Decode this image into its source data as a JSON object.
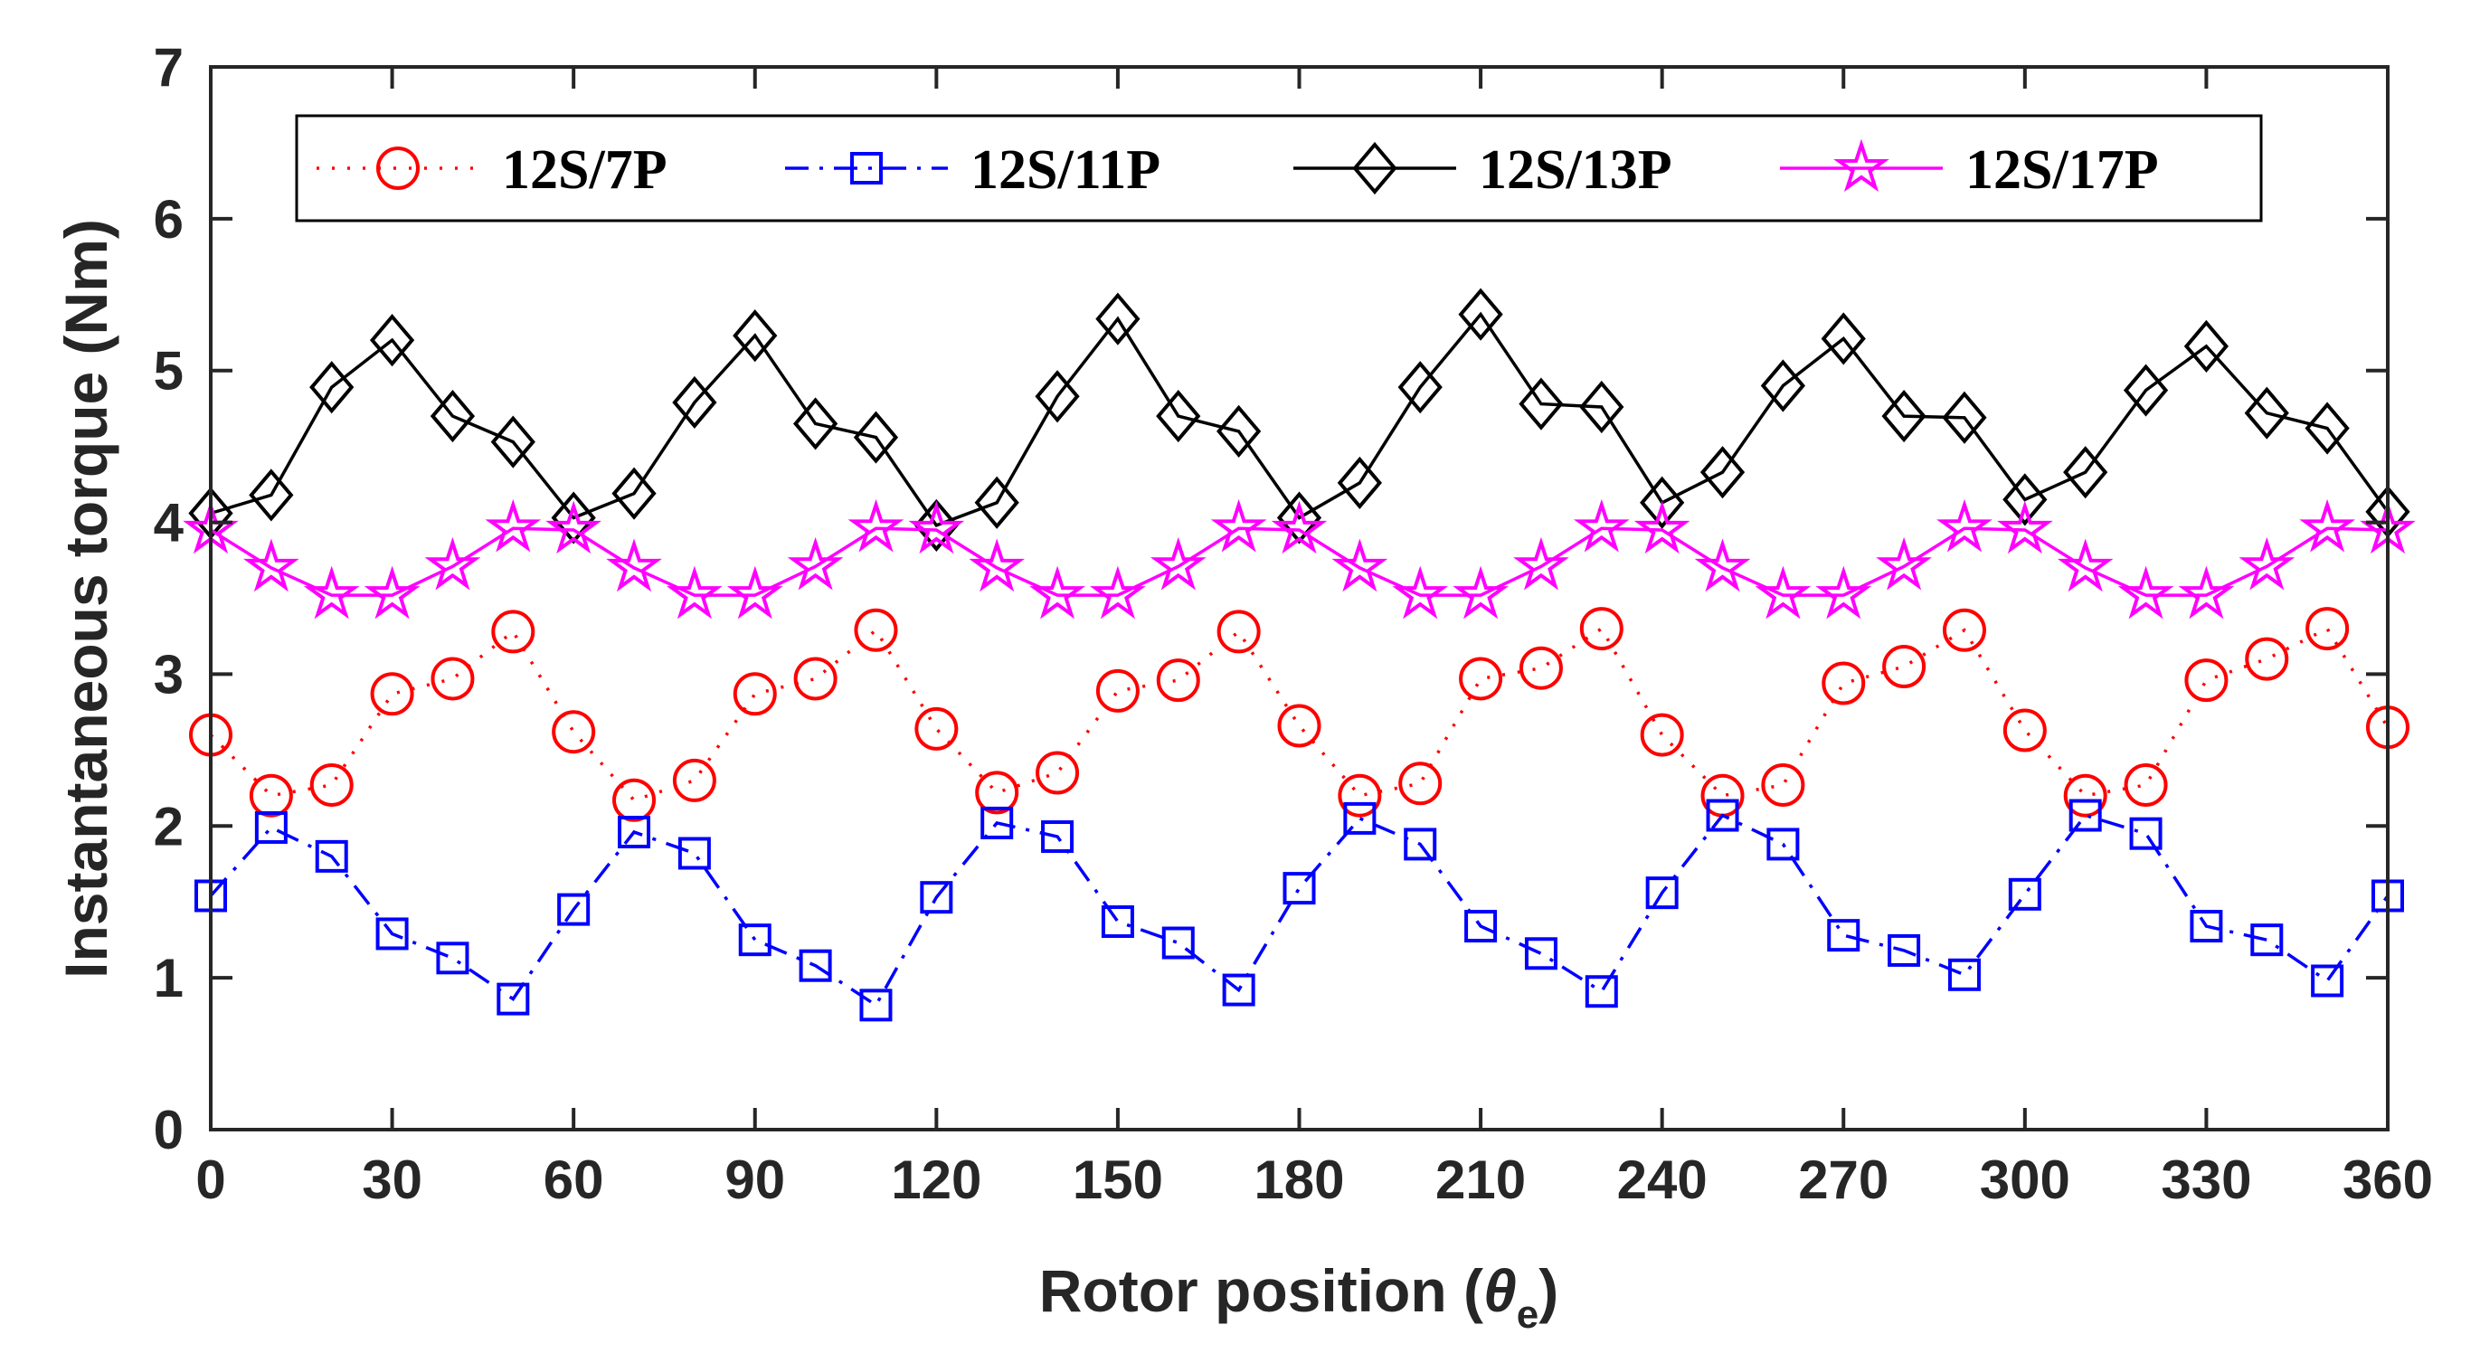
{
  "chart_data": {
    "type": "line",
    "xlabel_main": "Rotor position (",
    "xlabel_symbol": "θ",
    "xlabel_sub": "e",
    "xlabel_close": ")",
    "ylabel": "Instantaneous torque (Nm)",
    "xlim": [
      0,
      360
    ],
    "ylim": [
      0,
      7
    ],
    "xticks": [
      0,
      30,
      60,
      90,
      120,
      150,
      180,
      210,
      240,
      270,
      300,
      330,
      360
    ],
    "yticks": [
      0,
      1,
      2,
      3,
      4,
      5,
      6,
      7
    ],
    "x": [
      0,
      10,
      20,
      30,
      40,
      50,
      60,
      70,
      80,
      90,
      100,
      110,
      120,
      130,
      140,
      150,
      160,
      170,
      180,
      190,
      200,
      210,
      220,
      230,
      240,
      250,
      260,
      270,
      280,
      290,
      300,
      310,
      320,
      330,
      340,
      350,
      360
    ],
    "series": [
      {
        "name": "12S/7P",
        "color": "#ff0000",
        "line": "dotted",
        "marker": "circle",
        "values": [
          2.6,
          2.2,
          2.27,
          2.87,
          2.97,
          3.28,
          2.62,
          2.17,
          2.3,
          2.87,
          2.97,
          3.29,
          2.64,
          2.22,
          2.35,
          2.89,
          2.96,
          3.28,
          2.66,
          2.2,
          2.28,
          2.97,
          3.04,
          3.3,
          2.6,
          2.2,
          2.27,
          2.94,
          3.05,
          3.29,
          2.63,
          2.2,
          2.27,
          2.96,
          3.1,
          3.3,
          2.65
        ]
      },
      {
        "name": "12S/11P",
        "color": "#0000ff",
        "line": "dashdot",
        "marker": "square",
        "values": [
          1.54,
          1.99,
          1.8,
          1.29,
          1.13,
          0.86,
          1.45,
          1.96,
          1.82,
          1.25,
          1.08,
          0.82,
          1.53,
          2.02,
          1.93,
          1.37,
          1.23,
          0.92,
          1.59,
          2.05,
          1.88,
          1.34,
          1.16,
          0.91,
          1.56,
          2.07,
          1.88,
          1.28,
          1.18,
          1.02,
          1.55,
          2.07,
          1.95,
          1.34,
          1.25,
          0.98,
          1.54
        ]
      },
      {
        "name": "12S/13P",
        "color": "#000000",
        "line": "solid",
        "marker": "diamond",
        "values": [
          4.06,
          4.18,
          4.89,
          5.2,
          4.7,
          4.53,
          4.03,
          4.19,
          4.79,
          5.23,
          4.65,
          4.56,
          3.98,
          4.13,
          4.83,
          5.34,
          4.7,
          4.6,
          4.03,
          4.26,
          4.89,
          5.37,
          4.78,
          4.76,
          4.13,
          4.33,
          4.9,
          5.21,
          4.7,
          4.69,
          4.15,
          4.33,
          4.87,
          5.16,
          4.72,
          4.62,
          4.07
        ]
      },
      {
        "name": "12S/17P",
        "color": "#ff00ff",
        "line": "solid",
        "marker": "star",
        "values": [
          3.95,
          3.7,
          3.52,
          3.52,
          3.71,
          3.96,
          3.95,
          3.7,
          3.52,
          3.52,
          3.71,
          3.96,
          3.95,
          3.7,
          3.52,
          3.52,
          3.71,
          3.96,
          3.95,
          3.7,
          3.52,
          3.52,
          3.71,
          3.96,
          3.95,
          3.7,
          3.52,
          3.52,
          3.71,
          3.96,
          3.95,
          3.7,
          3.52,
          3.52,
          3.71,
          3.96,
          3.95
        ]
      }
    ],
    "legend_position": "top-center",
    "grid": false
  }
}
